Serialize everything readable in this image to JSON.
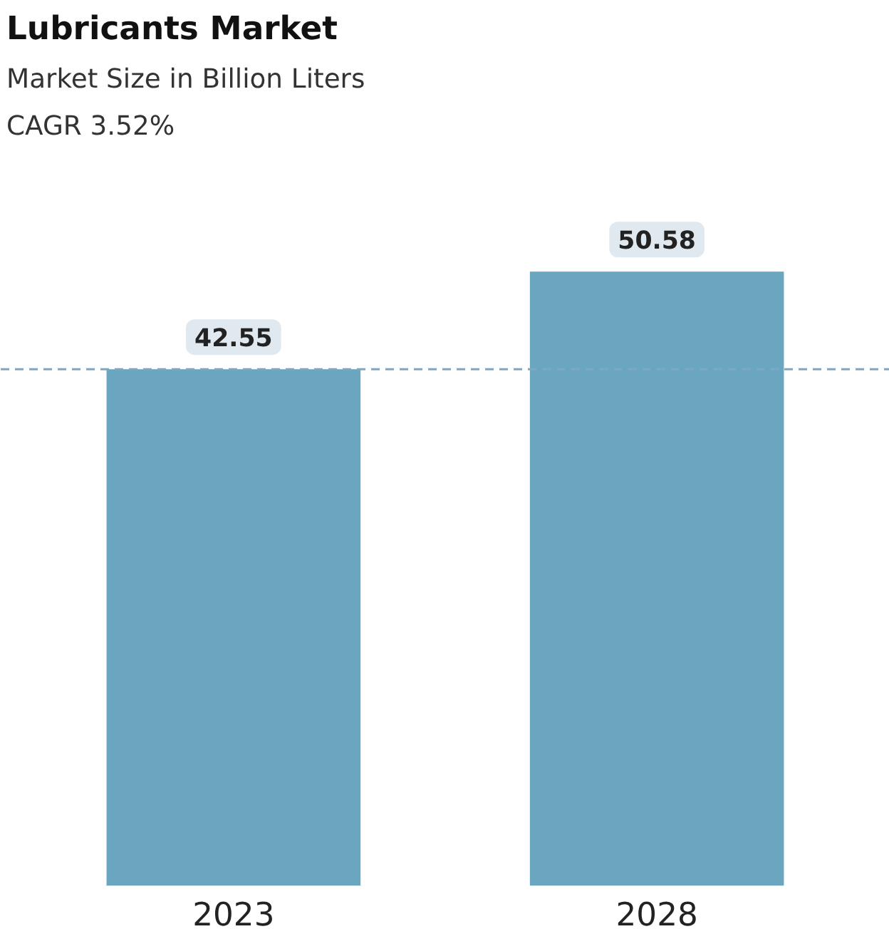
{
  "chart_data": {
    "type": "bar",
    "title": "Lubricants Market",
    "subtitle": "Market Size in Billion Liters",
    "annotations": [
      "CAGR 3.52%"
    ],
    "categories": [
      "2023",
      "2028"
    ],
    "values": [
      42.55,
      50.58
    ],
    "color": "#6aa6bf",
    "data_labels": true,
    "tick_labels": "x",
    "grid": false,
    "ref_lines": [
      {
        "axis": "y",
        "value": 42.55,
        "color": "#7fa6c4",
        "line_style": "dashed"
      }
    ]
  }
}
